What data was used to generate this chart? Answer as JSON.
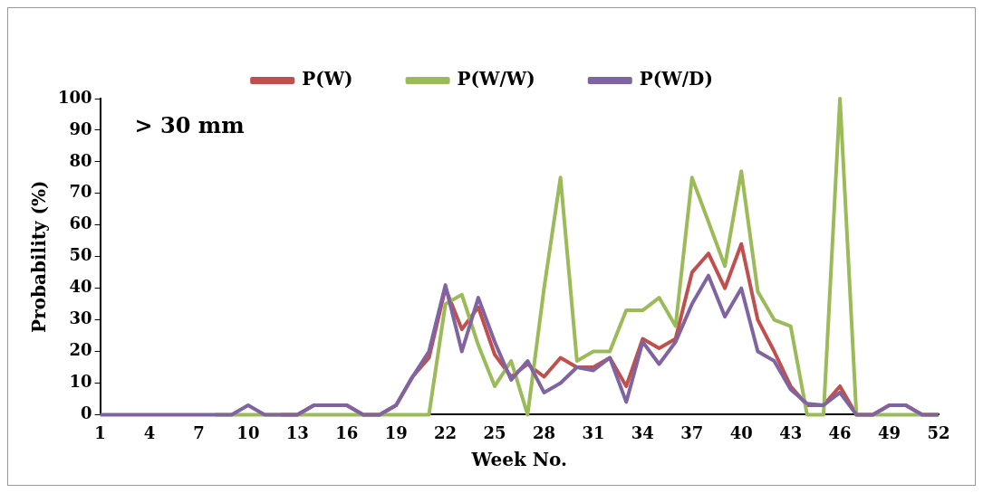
{
  "chart_data": {
    "type": "line",
    "xlabel": "Week No.",
    "ylabel": "Probability (%)",
    "annotations": [
      "> 30 mm"
    ],
    "categories": [
      "1",
      null,
      null,
      "4",
      null,
      null,
      "7",
      null,
      null,
      "10",
      null,
      null,
      "13",
      null,
      null,
      "16",
      null,
      null,
      "19",
      null,
      null,
      "22",
      null,
      null,
      "25",
      null,
      null,
      "28",
      null,
      null,
      "31",
      null,
      null,
      "34",
      null,
      null,
      "37",
      null,
      null,
      "40",
      null,
      null,
      "43",
      null,
      null,
      "46",
      null,
      null,
      "49",
      null,
      null,
      "52"
    ],
    "series": [
      {
        "name": "P(W)",
        "color": "#c0504d",
        "values": [
          null,
          null,
          null,
          null,
          null,
          null,
          null,
          null,
          null,
          null,
          null,
          0,
          0,
          3,
          3,
          3,
          0,
          0,
          3,
          12,
          18,
          40,
          27,
          34,
          19,
          12,
          16,
          12,
          18,
          15,
          15,
          18,
          9,
          24,
          21,
          24,
          45,
          51,
          40,
          54,
          30,
          20,
          9,
          3,
          3,
          9,
          0,
          0,
          3,
          3,
          0,
          0
        ]
      },
      {
        "name": "P(W/W)",
        "color": "#9bbb59",
        "values": [
          null,
          null,
          null,
          null,
          null,
          null,
          null,
          0,
          0,
          0,
          0,
          0,
          0,
          0,
          0,
          0,
          0,
          0,
          0,
          0,
          0,
          35,
          38,
          22,
          9,
          17,
          0,
          40,
          75,
          17,
          20,
          20,
          33,
          33,
          37,
          28,
          75,
          61,
          47,
          77,
          39,
          30,
          28,
          0,
          0,
          100,
          0,
          0,
          0,
          0,
          0,
          0
        ]
      },
      {
        "name": "P(W/D)",
        "color": "#8064a2",
        "values": [
          0,
          0,
          0,
          0,
          0,
          0,
          0,
          0,
          0,
          3,
          0,
          0,
          0,
          3,
          3,
          3,
          0,
          0,
          3,
          12,
          20,
          41,
          20,
          37,
          23,
          11,
          17,
          7,
          10,
          15,
          14,
          18,
          4,
          23,
          16,
          23,
          35,
          44,
          31,
          40,
          20,
          17,
          8,
          3.5,
          3,
          7,
          0,
          0,
          3,
          3,
          0,
          0
        ]
      }
    ],
    "ylim": [
      0,
      100
    ],
    "yticks": [
      0,
      10,
      20,
      30,
      40,
      50,
      60,
      70,
      80,
      90,
      100
    ],
    "grid": false,
    "legend": "top",
    "marker": "none",
    "line_style": "solid"
  }
}
